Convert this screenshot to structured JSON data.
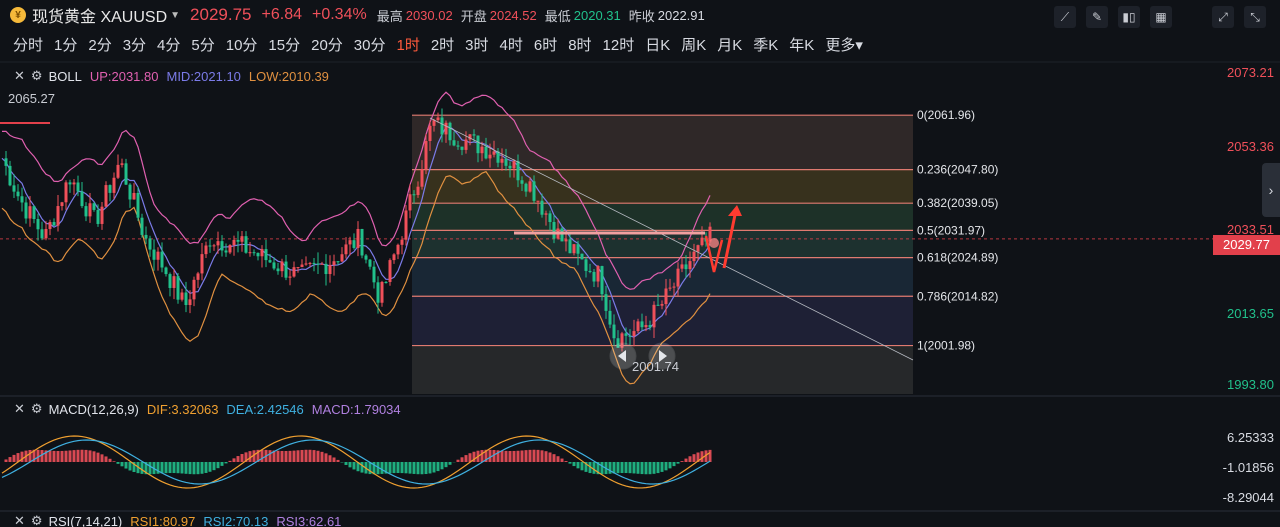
{
  "header": {
    "logo_glyph": "¥",
    "name": "现货黄金 XAUUSD",
    "price": "2029.75",
    "change": "+6.84",
    "change_pct": "+0.34%",
    "stats": [
      {
        "label": "最高",
        "value": "2030.02",
        "tone": "red"
      },
      {
        "label": "开盘",
        "value": "2024.52",
        "tone": "red"
      },
      {
        "label": "最低",
        "value": "2020.31",
        "tone": "green"
      },
      {
        "label": "昨收",
        "value": "2022.91",
        "tone": "white"
      }
    ]
  },
  "toolbar": {
    "icons": [
      "draw-line-icon",
      "pen-icon",
      "candle-style-icon",
      "indicator-icon",
      "expand-icon",
      "collapse-icon"
    ]
  },
  "periods": [
    "分时",
    "1分",
    "2分",
    "3分",
    "4分",
    "5分",
    "10分",
    "15分",
    "20分",
    "30分",
    "1时",
    "2时",
    "3时",
    "4时",
    "6时",
    "8时",
    "12时",
    "日K",
    "周K",
    "月K",
    "季K",
    "年K",
    "更多▾"
  ],
  "active_period": "1时",
  "main_indicator": {
    "name": "BOLL",
    "up": "UP:2031.80",
    "mid": "MID:2021.10",
    "low": "LOW:2010.39",
    "colors": {
      "up": "#e060b0",
      "mid": "#7b7be8",
      "low": "#e09040"
    }
  },
  "price_axis": [
    {
      "value": "2073.21",
      "tone": "red"
    },
    {
      "value": "2053.36",
      "tone": "red"
    },
    {
      "value": "2033.51",
      "tone": "red"
    },
    {
      "value": "2013.65",
      "tone": "green"
    },
    {
      "value": "1993.80",
      "tone": "green"
    }
  ],
  "current_price_tag": "2029.77",
  "chart_notes": {
    "left_high": "2065.27",
    "low_mark": "2001.74"
  },
  "fib_levels": [
    {
      "label": "0(2061.96)",
      "price": 2061.96
    },
    {
      "label": "0.236(2047.80)",
      "price": 2047.8
    },
    {
      "label": "0.382(2039.05)",
      "price": 2039.05
    },
    {
      "label": "0.5(2031.97)",
      "price": 2031.97
    },
    {
      "label": "0.618(2024.89)",
      "price": 2024.89
    },
    {
      "label": "0.786(2014.82)",
      "price": 2014.82
    },
    {
      "label": "1(2001.98)",
      "price": 2001.98
    }
  ],
  "macd": {
    "name": "MACD(12,26,9)",
    "dif": "DIF:3.32063",
    "dea": "DEA:2.42546",
    "macd": "MACD:1.79034",
    "axis": [
      "6.25333",
      "-1.01856",
      "-8.29044"
    ]
  },
  "rsi": {
    "name": "RSI(7,14,21)",
    "rsi1": "RSI1:80.97",
    "rsi2": "RSI2:70.13",
    "rsi3": "RSI3:62.61"
  }
}
